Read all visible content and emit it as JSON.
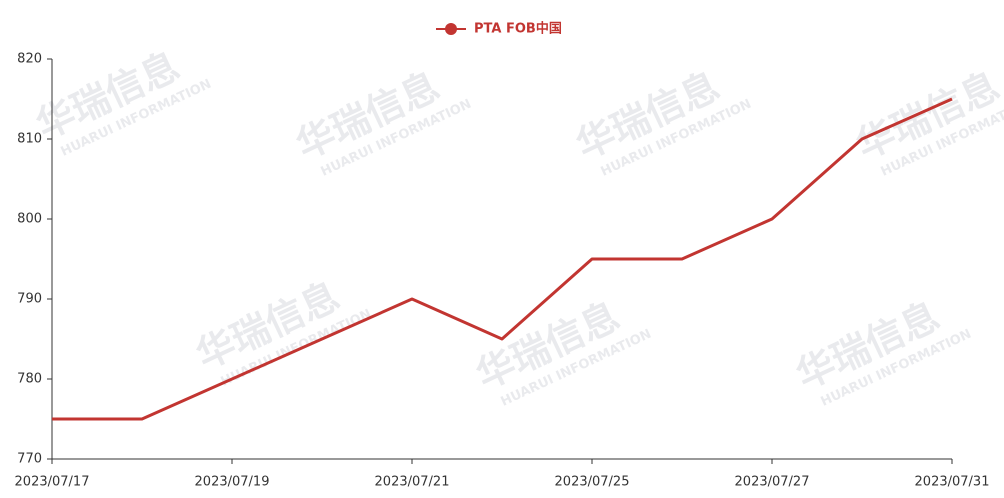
{
  "chart_data": {
    "type": "line",
    "watermark": "华瑞信息",
    "watermark_sub": "HUARUI INFORMATION",
    "categories": [
      "2023/07/17",
      null,
      "2023/07/19",
      null,
      "2023/07/21",
      null,
      "2023/07/25",
      null,
      "2023/07/27",
      null,
      "2023/07/31"
    ],
    "series": [
      {
        "name": "PTA FOB中国",
        "color": "#c23531",
        "values": [
          775,
          775,
          780,
          785,
          790,
          785,
          795,
          795,
          800,
          810,
          815
        ]
      }
    ],
    "ylim": [
      770,
      820
    ],
    "yticks": [
      770,
      780,
      790,
      800,
      810,
      820
    ],
    "grid": false
  }
}
